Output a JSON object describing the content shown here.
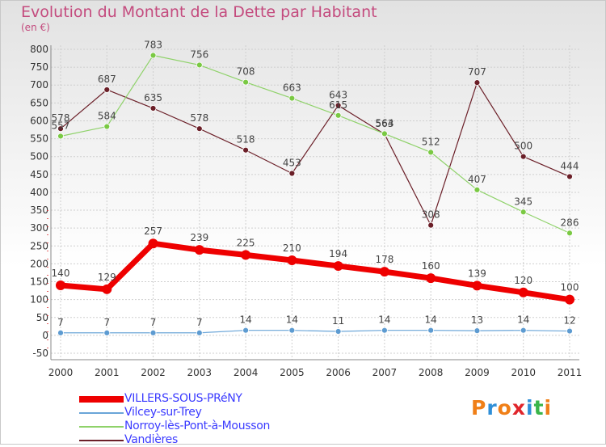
{
  "title": "Evolution du Montant de la Dette par Habitant",
  "unit": "(en €)",
  "logo": {
    "text": "Proxiti",
    "colors": [
      "#f07f17",
      "#2f8fd8",
      "#f07f17",
      "#e0252b",
      "#2f8fd8",
      "#3ab54a",
      "#f07f17"
    ]
  },
  "chart_data": {
    "type": "line",
    "title": "Evolution du Montant de la Dette par Habitant",
    "subtitle": "(en €)",
    "x": [
      "2000",
      "2001",
      "2002",
      "2003",
      "2004",
      "2005",
      "2006",
      "2007",
      "2008",
      "2009",
      "2010",
      "2011"
    ],
    "ylim": [
      -50,
      800
    ],
    "yticks": [
      -50,
      0,
      50,
      100,
      150,
      200,
      250,
      300,
      350,
      400,
      450,
      500,
      550,
      600,
      650,
      700,
      750,
      800
    ],
    "grid": true,
    "legend_position": "bottom-left",
    "series": [
      {
        "name": "VILLERS-SOUS-PRéNY",
        "color": "#ee0000",
        "line_width": 7,
        "marker_color": "#ee0000",
        "values": [
          140,
          129,
          257,
          239,
          225,
          210,
          194,
          178,
          160,
          139,
          120,
          100
        ]
      },
      {
        "name": "Vilcey-sur-Trey",
        "color": "#6aa5d8",
        "line_width": 1.2,
        "marker_color": "#5d9bd1",
        "values": [
          7,
          7,
          7,
          7,
          14,
          14,
          11,
          14,
          14,
          13,
          14,
          12
        ]
      },
      {
        "name": "Norroy-lès-Pont-à-Mousson",
        "color": "#8fd26a",
        "line_width": 1.2,
        "marker_color": "#7ac943",
        "values": [
          557,
          584,
          783,
          756,
          708,
          663,
          615,
          564,
          512,
          407,
          345,
          286
        ]
      },
      {
        "name": "Vandières",
        "color": "#6b1f28",
        "line_width": 1.2,
        "marker_color": "#6b1f28",
        "values": [
          578,
          687,
          635,
          578,
          518,
          453,
          643,
          563,
          308,
          707,
          500,
          444
        ]
      }
    ]
  }
}
